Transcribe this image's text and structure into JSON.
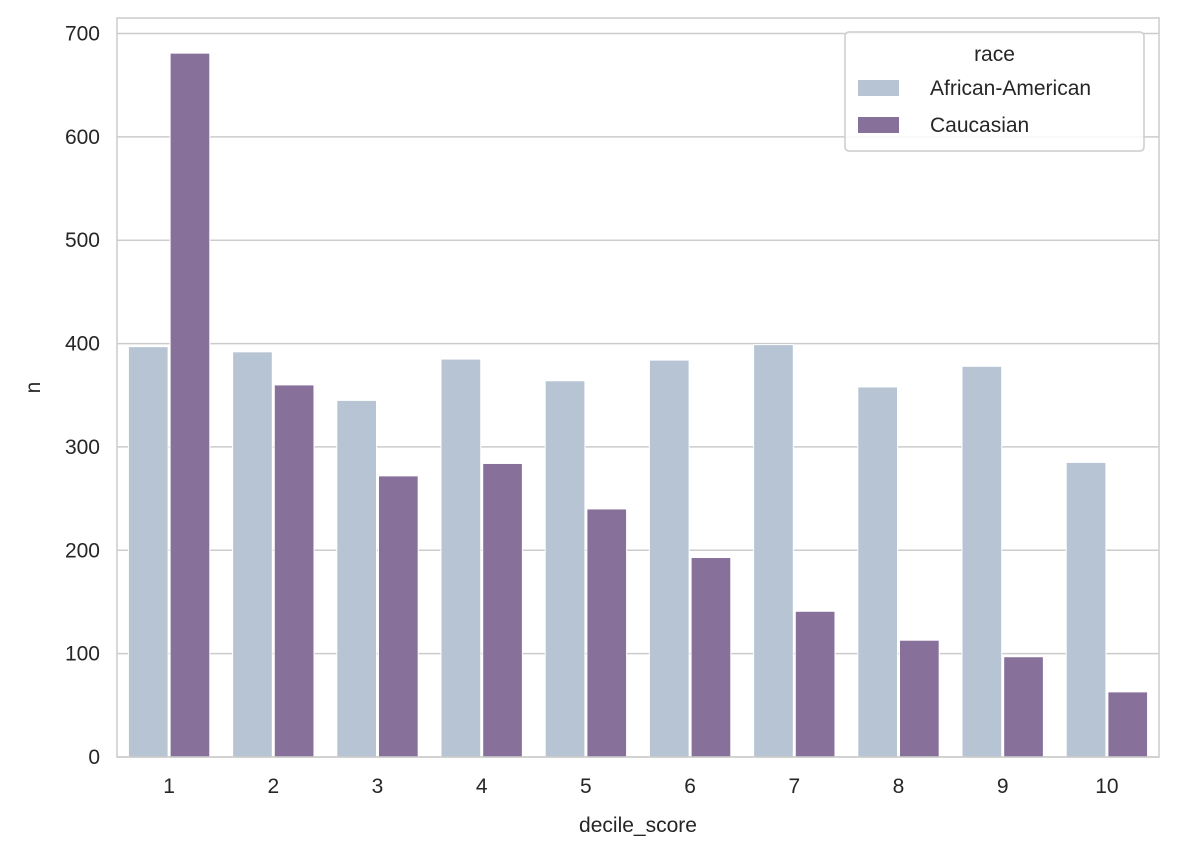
{
  "chart_data": {
    "type": "bar",
    "categories": [
      "1",
      "2",
      "3",
      "4",
      "5",
      "6",
      "7",
      "8",
      "9",
      "10"
    ],
    "series": [
      {
        "name": "African-American",
        "color": "#b6c4d3",
        "values": [
          397,
          392,
          345,
          385,
          364,
          384,
          399,
          358,
          378,
          285
        ]
      },
      {
        "name": "Caucasian",
        "color": "#87709a",
        "values": [
          681,
          360,
          272,
          284,
          240,
          193,
          141,
          113,
          97,
          63
        ]
      }
    ],
    "title": "",
    "xlabel": "decile_score",
    "ylabel": "n",
    "ylim": [
      0,
      715
    ],
    "yticks": [
      0,
      100,
      200,
      300,
      400,
      500,
      600,
      700
    ],
    "grid": true,
    "legend": {
      "title": "race",
      "placement": "top-right"
    }
  }
}
